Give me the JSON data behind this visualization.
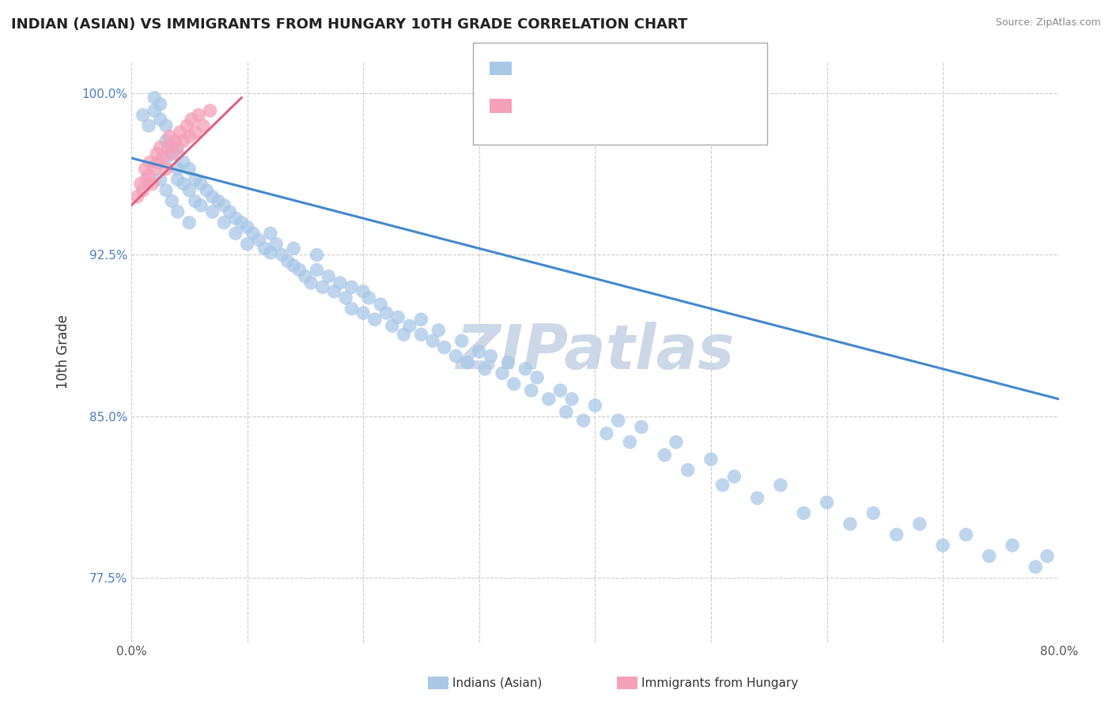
{
  "title": "INDIAN (ASIAN) VS IMMIGRANTS FROM HUNGARY 10TH GRADE CORRELATION CHART",
  "source_text": "Source: ZipAtlas.com",
  "ylabel": "10th Grade",
  "xlim": [
    0.0,
    0.8
  ],
  "ylim": [
    0.745,
    1.015
  ],
  "xticks": [
    0.0,
    0.1,
    0.2,
    0.3,
    0.4,
    0.5,
    0.6,
    0.7,
    0.8
  ],
  "xticklabels": [
    "0.0%",
    "",
    "",
    "",
    "",
    "",
    "",
    "",
    "80.0%"
  ],
  "yticks": [
    0.775,
    0.85,
    0.925,
    1.0
  ],
  "yticklabels": [
    "77.5%",
    "85.0%",
    "92.5%",
    "100.0%"
  ],
  "legend_labels": [
    "Indians (Asian)",
    "Immigrants from Hungary"
  ],
  "color_blue": "#a8c8e8",
  "color_pink": "#f4a0b8",
  "trendline_blue": "#4488cc",
  "trendline_pink": "#e06080",
  "watermark_color": "#ccd8e8",
  "background_color": "#ffffff",
  "grid_color": "#cccccc",
  "blue_trend_x": [
    0.0,
    0.8
  ],
  "blue_trend_y": [
    0.97,
    0.858
  ],
  "pink_trend_x": [
    0.0,
    0.095
  ],
  "pink_trend_y": [
    0.948,
    0.998
  ],
  "blue_x": [
    0.01,
    0.015,
    0.02,
    0.02,
    0.025,
    0.025,
    0.03,
    0.03,
    0.03,
    0.035,
    0.04,
    0.04,
    0.04,
    0.045,
    0.045,
    0.05,
    0.05,
    0.055,
    0.055,
    0.06,
    0.06,
    0.065,
    0.07,
    0.07,
    0.075,
    0.08,
    0.08,
    0.085,
    0.09,
    0.09,
    0.095,
    0.1,
    0.1,
    0.105,
    0.11,
    0.115,
    0.12,
    0.12,
    0.125,
    0.13,
    0.135,
    0.14,
    0.14,
    0.145,
    0.15,
    0.155,
    0.16,
    0.16,
    0.165,
    0.17,
    0.175,
    0.18,
    0.185,
    0.19,
    0.19,
    0.2,
    0.2,
    0.205,
    0.21,
    0.215,
    0.22,
    0.225,
    0.23,
    0.235,
    0.24,
    0.25,
    0.25,
    0.26,
    0.265,
    0.27,
    0.28,
    0.285,
    0.29,
    0.3,
    0.305,
    0.31,
    0.32,
    0.325,
    0.33,
    0.34,
    0.345,
    0.35,
    0.36,
    0.37,
    0.375,
    0.38,
    0.39,
    0.4,
    0.41,
    0.42,
    0.43,
    0.44,
    0.46,
    0.47,
    0.48,
    0.5,
    0.51,
    0.52,
    0.54,
    0.56,
    0.58,
    0.6,
    0.62,
    0.64,
    0.66,
    0.68,
    0.7,
    0.72,
    0.74,
    0.76,
    0.78,
    0.79,
    0.025,
    0.03,
    0.035,
    0.04,
    0.05
  ],
  "blue_y": [
    0.99,
    0.985,
    0.998,
    0.992,
    0.995,
    0.988,
    0.985,
    0.978,
    0.97,
    0.975,
    0.972,
    0.965,
    0.96,
    0.968,
    0.958,
    0.965,
    0.955,
    0.96,
    0.95,
    0.958,
    0.948,
    0.955,
    0.952,
    0.945,
    0.95,
    0.948,
    0.94,
    0.945,
    0.942,
    0.935,
    0.94,
    0.938,
    0.93,
    0.935,
    0.932,
    0.928,
    0.926,
    0.935,
    0.93,
    0.925,
    0.922,
    0.92,
    0.928,
    0.918,
    0.915,
    0.912,
    0.918,
    0.925,
    0.91,
    0.915,
    0.908,
    0.912,
    0.905,
    0.91,
    0.9,
    0.908,
    0.898,
    0.905,
    0.895,
    0.902,
    0.898,
    0.892,
    0.896,
    0.888,
    0.892,
    0.888,
    0.895,
    0.885,
    0.89,
    0.882,
    0.878,
    0.885,
    0.875,
    0.88,
    0.872,
    0.878,
    0.87,
    0.875,
    0.865,
    0.872,
    0.862,
    0.868,
    0.858,
    0.862,
    0.852,
    0.858,
    0.848,
    0.855,
    0.842,
    0.848,
    0.838,
    0.845,
    0.832,
    0.838,
    0.825,
    0.83,
    0.818,
    0.822,
    0.812,
    0.818,
    0.805,
    0.81,
    0.8,
    0.805,
    0.795,
    0.8,
    0.79,
    0.795,
    0.785,
    0.79,
    0.78,
    0.785,
    0.96,
    0.955,
    0.95,
    0.945,
    0.94
  ],
  "pink_x": [
    0.005,
    0.008,
    0.01,
    0.012,
    0.013,
    0.015,
    0.016,
    0.018,
    0.02,
    0.022,
    0.023,
    0.025,
    0.027,
    0.03,
    0.032,
    0.033,
    0.035,
    0.038,
    0.04,
    0.042,
    0.045,
    0.048,
    0.05,
    0.052,
    0.055,
    0.058,
    0.062,
    0.068
  ],
  "pink_y": [
    0.952,
    0.958,
    0.955,
    0.965,
    0.96,
    0.962,
    0.968,
    0.958,
    0.965,
    0.972,
    0.968,
    0.975,
    0.97,
    0.965,
    0.975,
    0.98,
    0.972,
    0.978,
    0.975,
    0.982,
    0.978,
    0.985,
    0.98,
    0.988,
    0.982,
    0.99,
    0.985,
    0.992
  ]
}
